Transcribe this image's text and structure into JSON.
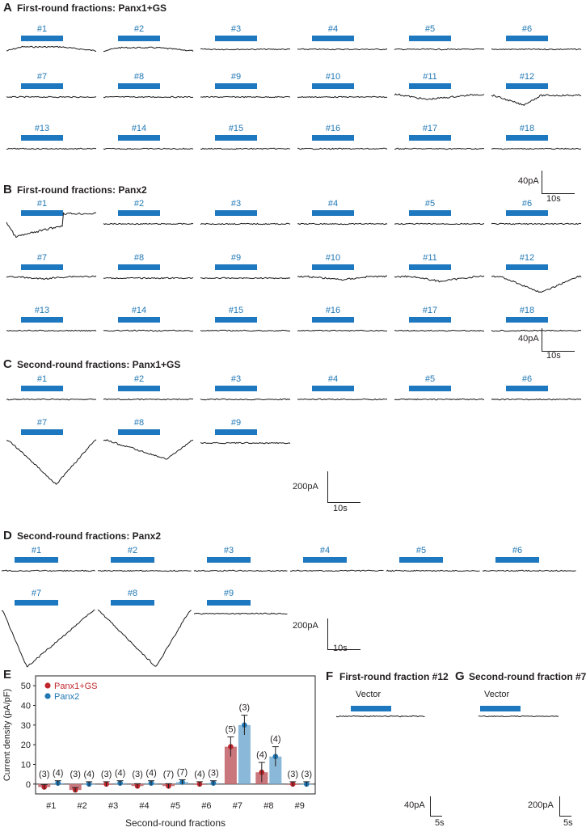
{
  "panels": {
    "A": {
      "letter": "A",
      "title": "First-round fractions: Panx1+GS"
    },
    "B": {
      "letter": "B",
      "title": "First-round fractions: Panx2"
    },
    "C": {
      "letter": "C",
      "title": "Second-round fractions: Panx1+GS"
    },
    "D": {
      "letter": "D",
      "title": "Second-round fractions: Panx2"
    },
    "E": {
      "letter": "E"
    },
    "F": {
      "letter": "F",
      "title": "First-round fraction #12",
      "sublabel": "Vector"
    },
    "G": {
      "letter": "G",
      "title": "Second-round fraction #7",
      "sublabel": "Vector"
    }
  },
  "fractions18": [
    "#1",
    "#2",
    "#3",
    "#4",
    "#5",
    "#6",
    "#7",
    "#8",
    "#9",
    "#10",
    "#11",
    "#12",
    "#13",
    "#14",
    "#15",
    "#16",
    "#17",
    "#18"
  ],
  "fractions9": [
    "#1",
    "#2",
    "#3",
    "#4",
    "#5",
    "#6",
    "#7",
    "#8",
    "#9"
  ],
  "scalebars": {
    "A": {
      "y": "40pA",
      "x": "10s"
    },
    "B": {
      "y": "40pA",
      "x": "10s"
    },
    "C": {
      "y": "200pA",
      "x": "10s"
    },
    "D": {
      "y": "200pA",
      "x": "10s"
    },
    "F": {
      "y": "40pA",
      "x": "5s"
    },
    "G": {
      "y": "200pA",
      "x": "5s"
    }
  },
  "chart_data": {
    "type": "bar",
    "ylabel": "Current density (pA/pF)",
    "xlabel": "Second-round fractions",
    "categories": [
      "#1",
      "#2",
      "#3",
      "#4",
      "#5",
      "#6",
      "#7",
      "#8",
      "#9"
    ],
    "ylim": [
      -5,
      55
    ],
    "yticks": [
      0,
      10,
      20,
      30,
      40,
      50
    ],
    "legend": "top-left",
    "series": [
      {
        "name": "Panx1+GS",
        "color": "#c0272d",
        "values": [
          -1.5,
          -3,
          0,
          -1,
          -1,
          0,
          19,
          6,
          0
        ],
        "n": [
          "(3)",
          "(3)",
          "(3)",
          "(3)",
          "(7)",
          "(4)",
          "(5)",
          "(4)",
          "(3)"
        ]
      },
      {
        "name": "Panx2",
        "color": "#1f77b4",
        "values": [
          0.5,
          0,
          0.5,
          0.5,
          1,
          0.5,
          30,
          14,
          0
        ],
        "n": [
          "(4)",
          "(4)",
          "(4)",
          "(4)",
          "(7)",
          "(3)",
          "(3)",
          "(4)",
          "(3)"
        ]
      }
    ]
  }
}
